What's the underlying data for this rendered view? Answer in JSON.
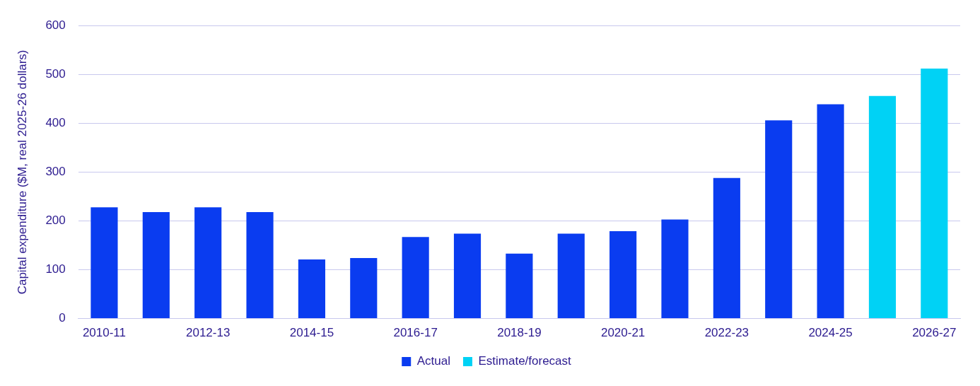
{
  "chart_data": {
    "type": "bar",
    "ylabel": "Capital expenditure ($M, real 2025-26 dollars)",
    "categories": [
      "2010-11",
      null,
      "2012-13",
      null,
      "2014-15",
      null,
      "2016-17",
      null,
      "2018-19",
      null,
      "2020-21",
      null,
      "2022-23",
      null,
      "2024-25",
      null,
      "2026-27"
    ],
    "series": [
      {
        "name": "Actual",
        "color": "#0a3cf0",
        "values": [
          228,
          218,
          228,
          218,
          121,
          124,
          167,
          174,
          133,
          174,
          179,
          203,
          288,
          406,
          439,
          null,
          null
        ]
      },
      {
        "name": "Estimate/forecast",
        "color": "#00d2f5",
        "values": [
          null,
          null,
          null,
          null,
          null,
          null,
          null,
          null,
          null,
          null,
          null,
          null,
          null,
          null,
          null,
          456,
          512
        ]
      }
    ],
    "stacked": true,
    "ylim": [
      0,
      600
    ],
    "yticks": [
      0,
      100,
      200,
      300,
      400,
      500,
      600
    ],
    "grid": "y",
    "legend": "bottom"
  }
}
